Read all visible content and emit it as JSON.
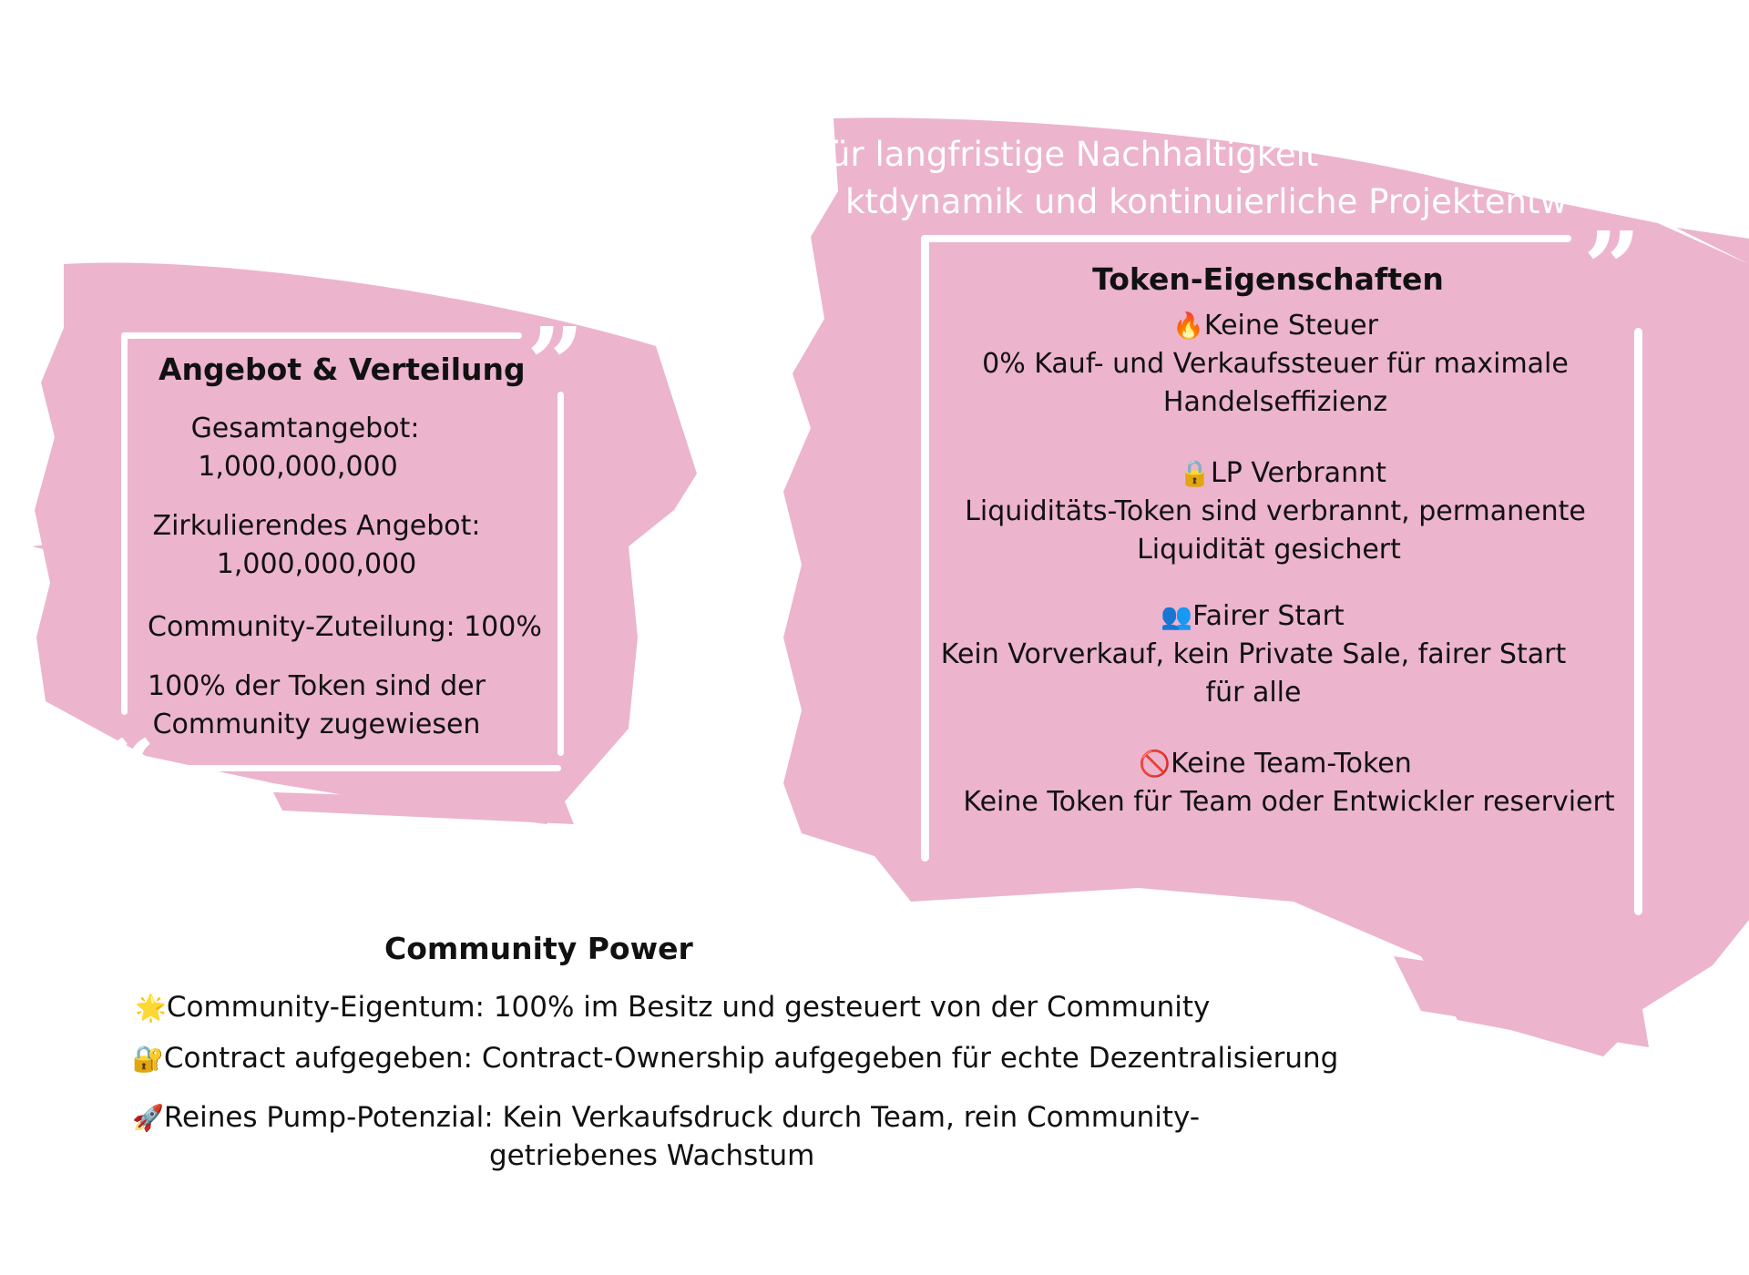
{
  "header_faded": {
    "line1": "für langfristige Nachhaltigkeit",
    "line2": "ktdynamik und kontinuierliche Projektentw"
  },
  "supply": {
    "title": "Angebot & Verteilung",
    "total_label": "Gesamtangebot:",
    "total_value": "1,000,000,000",
    "circ_label": "Zirkulierendes Angebot:",
    "circ_value": "1,000,000,000",
    "community_alloc": "Community-Zuteilung: 100%",
    "note_line1": "100% der Token sind der",
    "note_line2": "Community zugewiesen"
  },
  "token": {
    "title": "Token-Eigenschaften",
    "features": [
      {
        "icon": "fire-icon",
        "glyph": "🔥",
        "title": "Keine Steuer",
        "line1": "0% Kauf- und Verkaufssteuer für maximale",
        "line2": "Handelseffizienz"
      },
      {
        "icon": "lock-icon",
        "glyph": "🔒",
        "title": "LP Verbrannt",
        "line1": "Liquiditäts-Token sind verbrannt, permanente",
        "line2": "Liquidität gesichert"
      },
      {
        "icon": "people-icon",
        "glyph": "👥",
        "title": "Fairer Start",
        "line1": "Kein Vorverkauf, kein Private Sale, fairer Start",
        "line2": "für alle"
      },
      {
        "icon": "prohibited-icon",
        "glyph": "🚫",
        "title": "Keine Team-Token",
        "line1": "Keine Token für Team oder Entwickler reserviert"
      }
    ]
  },
  "community": {
    "title": "Community Power",
    "items": [
      {
        "icon": "star-icon",
        "glyph": "🌟",
        "text": "Community-Eigentum: 100% im Besitz und gesteuert von der Community"
      },
      {
        "icon": "lock-key-icon",
        "glyph": "🔐",
        "text": "Contract aufgegeben: Contract-Ownership aufgegeben für echte Dezentralisierung"
      },
      {
        "icon": "rocket-icon",
        "glyph": "🚀",
        "text": "Reines Pump-Potenzial: Kein Verkaufsdruck durch Team, rein Community-",
        "text2": "getriebenes Wachstum"
      }
    ]
  },
  "colors": {
    "brush": "#ecb4cd",
    "frame": "#ffffff",
    "text": "#111111"
  }
}
